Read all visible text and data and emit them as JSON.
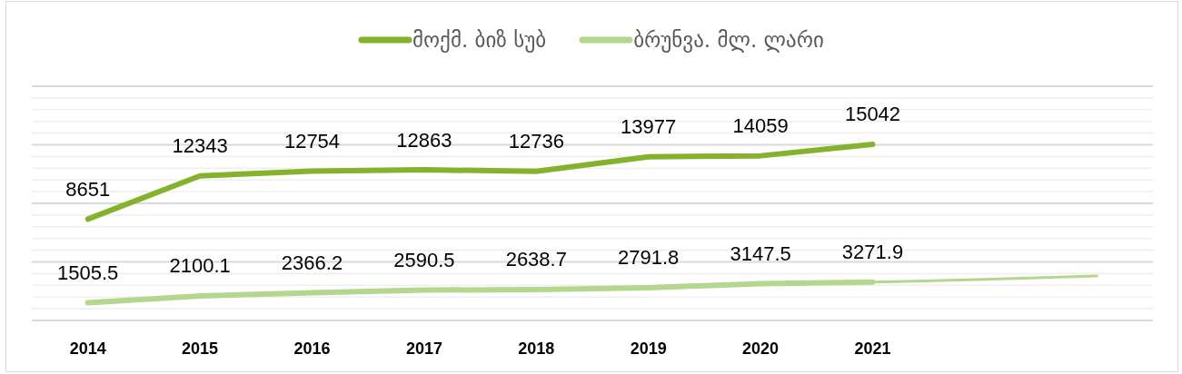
{
  "chart_data": {
    "type": "line",
    "categories": [
      "2014",
      "2015",
      "2016",
      "2017",
      "2018",
      "2019",
      "2020",
      "2021",
      null,
      null
    ],
    "series": [
      {
        "name": "მოქმ. ბიზ სუბ",
        "color": "#84b22d",
        "values": [
          8651,
          12343,
          12754,
          12863,
          12736,
          13977,
          14059,
          15042,
          null,
          null
        ],
        "value_labels": [
          "8651",
          "12343",
          "12754",
          "12863",
          "12736",
          "13977",
          "14059",
          "15042",
          null,
          null
        ]
      },
      {
        "name": "ბრუნვა. მლ. ლარი",
        "color": "#b3d78c",
        "values": [
          1505.5,
          2100.1,
          2366.2,
          2590.5,
          2638.7,
          2791.8,
          3147.5,
          3271.9,
          null,
          null
        ],
        "value_labels": [
          "1505.5",
          "2100.1",
          "2366.2",
          "2590.5",
          "2638.7",
          "2791.8",
          "3147.5",
          "3271.9",
          null,
          null
        ]
      },
      {
        "color": "#b3d78c",
        "values": [
          null,
          null,
          null,
          null,
          null,
          null,
          null,
          3271.9,
          3500,
          3800
        ]
      }
    ],
    "ylim": [
      0,
      20000
    ],
    "yticks": [
      {
        "value": 0,
        "label": null
      },
      {
        "value": 1000,
        "label": null
      },
      {
        "value": 2000,
        "label": null
      },
      {
        "value": 3000,
        "label": null
      },
      {
        "value": 4000,
        "label": null
      },
      {
        "value": 5000,
        "label": null
      },
      {
        "value": 6000,
        "label": null
      },
      {
        "value": 7000,
        "label": null
      },
      {
        "value": 8000,
        "label": null
      },
      {
        "value": 9000,
        "label": null
      },
      {
        "value": 10000,
        "label": null
      },
      {
        "value": 11000,
        "label": null
      },
      {
        "value": 12000,
        "label": null
      },
      {
        "value": 13000,
        "label": null
      },
      {
        "value": 14000,
        "label": null
      },
      {
        "value": 15000,
        "label": null
      },
      {
        "value": 16000,
        "label": null
      },
      {
        "value": 17000,
        "label": null
      },
      {
        "value": 18000,
        "label": null
      },
      {
        "value": 19000,
        "label": null
      },
      {
        "value": 20000,
        "label": null
      }
    ],
    "tick_labels": "x",
    "grid": "y",
    "legend": "top",
    "marker": "none"
  }
}
